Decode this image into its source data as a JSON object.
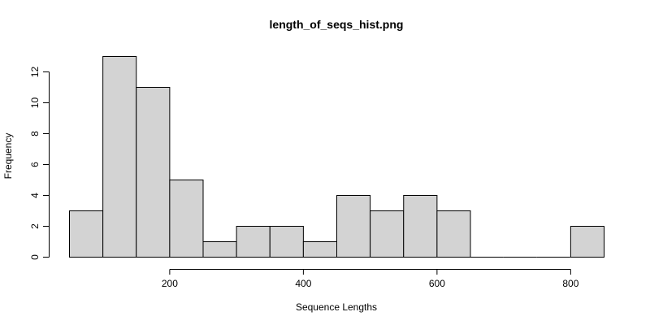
{
  "chart_data": {
    "type": "bar",
    "title": "length_of_seqs_hist.png",
    "xlabel": "Sequence Lengths",
    "ylabel": "Frequency",
    "bin_edges": [
      50,
      100,
      150,
      200,
      250,
      300,
      350,
      400,
      450,
      500,
      550,
      600,
      650,
      700,
      750,
      800,
      850
    ],
    "values": [
      3,
      13,
      11,
      5,
      1,
      2,
      2,
      1,
      4,
      3,
      4,
      3,
      0,
      0,
      0,
      2
    ],
    "xticks": [
      200,
      400,
      600,
      800
    ],
    "yticks": [
      0,
      2,
      4,
      6,
      8,
      10,
      12
    ],
    "xlim": [
      50,
      850
    ],
    "ylim": [
      0,
      13
    ],
    "grid": false,
    "bar_fill": "#d3d3d3",
    "bar_stroke": "#000000"
  }
}
